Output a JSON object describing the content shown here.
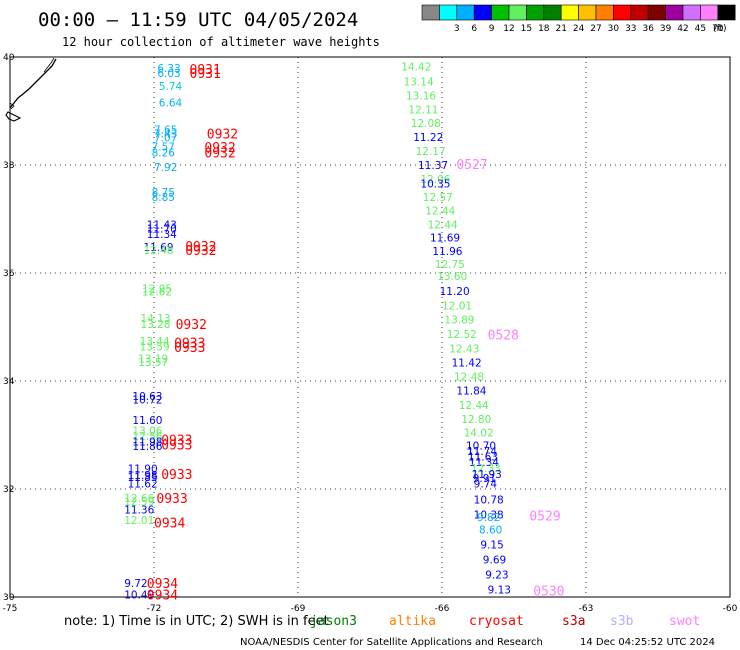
{
  "header": {
    "title": "00:00 – 11:59 UTC 04/05/2024",
    "subtitle": "12 hour collection of altimeter wave heights"
  },
  "colorbar": {
    "unit": "(ft)",
    "bins": [
      {
        "label": "",
        "color": "#888888"
      },
      {
        "label": "3",
        "color": "#00ffff"
      },
      {
        "label": "6",
        "color": "#00b0ff"
      },
      {
        "label": "9",
        "color": "#0000ff"
      },
      {
        "label": "12",
        "color": "#00c000"
      },
      {
        "label": "15",
        "color": "#60f060"
      },
      {
        "label": "18",
        "color": "#00a000"
      },
      {
        "label": "21",
        "color": "#008000"
      },
      {
        "label": "24",
        "color": "#ffff00"
      },
      {
        "label": "27",
        "color": "#ffc000"
      },
      {
        "label": "30",
        "color": "#ff8000"
      },
      {
        "label": "33",
        "color": "#ff0000"
      },
      {
        "label": "36",
        "color": "#c00000"
      },
      {
        "label": "39",
        "color": "#800000"
      },
      {
        "label": "42",
        "color": "#a000a0"
      },
      {
        "label": "45",
        "color": "#d070ff"
      },
      {
        "label": "70",
        "color": "#ff80ff"
      },
      {
        "label": "",
        "color": "#000000"
      }
    ]
  },
  "axes": {
    "lon_labels": [
      "-75",
      "-72",
      "-69",
      "-66",
      "-63",
      "-60"
    ],
    "lat_labels": [
      "40",
      "38",
      "36",
      "34",
      "32",
      "30"
    ]
  },
  "footer": {
    "note": "note: 1) Time is in UTC; 2) SWH is in feet",
    "satellites": [
      {
        "name": "jason3",
        "color": "#008000"
      },
      {
        "name": "altika",
        "color": "#ff8000"
      },
      {
        "name": "cryosat",
        "color": "#ff0000"
      },
      {
        "name": "s3a",
        "color": "#c00000"
      },
      {
        "name": "s3b",
        "color": "#b0b0ff"
      },
      {
        "name": "swot",
        "color": "#ff80ff"
      }
    ],
    "credit": "NOAA/NESDIS Center for Satellite Applications and Research",
    "timestamp": "14 Dec 04:25:52 UTC 2024"
  },
  "colors": {
    "c_lightgreen": "#60f060",
    "c_blue": "#0000ff",
    "c_skyblue": "#00b0ff",
    "c_cyan": "#00d0d0",
    "c_red": "#ff0000",
    "c_pink": "#ff80ff"
  },
  "observations": [
    {
      "lon": -71.93,
      "lat": 39.8,
      "text": "6.33",
      "color": "#00b0ff"
    },
    {
      "lon": -71.93,
      "lat": 39.7,
      "text": "6.03",
      "color": "#00b0ff"
    },
    {
      "lon": -71.9,
      "lat": 39.46,
      "text": "5.74",
      "color": "#00d0d0"
    },
    {
      "lon": -71.9,
      "lat": 39.16,
      "text": "6.64",
      "color": "#00b0ff"
    },
    {
      "lon": -72.0,
      "lat": 38.66,
      "text": "7.65",
      "color": "#00b0ff"
    },
    {
      "lon": -72.0,
      "lat": 38.58,
      "text": "7.43",
      "color": "#00b0ff"
    },
    {
      "lon": -72.0,
      "lat": 38.51,
      "text": "7.07",
      "color": "#00b0ff"
    },
    {
      "lon": -72.05,
      "lat": 38.34,
      "text": "7.57",
      "color": "#00b0ff"
    },
    {
      "lon": -72.05,
      "lat": 38.23,
      "text": "8.26",
      "color": "#00b0ff"
    },
    {
      "lon": -72.0,
      "lat": 37.96,
      "text": "7.92",
      "color": "#00b0ff"
    },
    {
      "lon": -72.05,
      "lat": 37.5,
      "text": "8.75",
      "color": "#00b0ff"
    },
    {
      "lon": -72.05,
      "lat": 37.41,
      "text": "8.85",
      "color": "#00b0ff"
    },
    {
      "lon": -72.15,
      "lat": 36.9,
      "text": "11.43",
      "color": "#0000ff"
    },
    {
      "lon": -72.15,
      "lat": 36.82,
      "text": "11.70",
      "color": "#0000ff"
    },
    {
      "lon": -72.15,
      "lat": 36.72,
      "text": "11.34",
      "color": "#0000ff"
    },
    {
      "lon": -72.22,
      "lat": 36.48,
      "text": "11.69",
      "color": "#0000ff"
    },
    {
      "lon": -72.22,
      "lat": 36.43,
      "text": "12.48",
      "color": "#60f060"
    },
    {
      "lon": -72.25,
      "lat": 35.71,
      "text": "12.95",
      "color": "#60f060"
    },
    {
      "lon": -72.25,
      "lat": 35.66,
      "text": "12.62",
      "color": "#60f060"
    },
    {
      "lon": -72.28,
      "lat": 35.17,
      "text": "14.13",
      "color": "#60f060"
    },
    {
      "lon": -72.28,
      "lat": 35.06,
      "text": "13.28",
      "color": "#60f060"
    },
    {
      "lon": -72.3,
      "lat": 34.74,
      "text": "13.44",
      "color": "#60f060"
    },
    {
      "lon": -72.3,
      "lat": 34.64,
      "text": "13.59",
      "color": "#60f060"
    },
    {
      "lon": -72.33,
      "lat": 34.42,
      "text": "13.19",
      "color": "#60f060"
    },
    {
      "lon": -72.33,
      "lat": 34.35,
      "text": "13.57",
      "color": "#60f060"
    },
    {
      "lon": -72.45,
      "lat": 33.72,
      "text": "10.63",
      "color": "#0000ff"
    },
    {
      "lon": -72.45,
      "lat": 33.66,
      "text": "10.72",
      "color": "#0000ff"
    },
    {
      "lon": -72.45,
      "lat": 33.28,
      "text": "11.60",
      "color": "#0000ff"
    },
    {
      "lon": -72.45,
      "lat": 33.08,
      "text": "13.06",
      "color": "#60f060"
    },
    {
      "lon": -72.45,
      "lat": 32.98,
      "text": "12.56",
      "color": "#60f060"
    },
    {
      "lon": -72.45,
      "lat": 32.88,
      "text": "11.98",
      "color": "#0000ff"
    },
    {
      "lon": -72.45,
      "lat": 32.8,
      "text": "11.86",
      "color": "#0000ff"
    },
    {
      "lon": -72.55,
      "lat": 32.38,
      "text": "11.90",
      "color": "#0000ff"
    },
    {
      "lon": -72.55,
      "lat": 32.26,
      "text": "11.98",
      "color": "#0000ff"
    },
    {
      "lon": -72.55,
      "lat": 32.22,
      "text": "11.85",
      "color": "#0000ff"
    },
    {
      "lon": -72.55,
      "lat": 32.1,
      "text": "11.62",
      "color": "#0000ff"
    },
    {
      "lon": -72.62,
      "lat": 31.83,
      "text": "12.66",
      "color": "#60f060"
    },
    {
      "lon": -72.62,
      "lat": 31.77,
      "text": "12.59",
      "color": "#60f060"
    },
    {
      "lon": -72.62,
      "lat": 31.62,
      "text": "11.36",
      "color": "#0000ff"
    },
    {
      "lon": -72.62,
      "lat": 31.43,
      "text": "12.01",
      "color": "#60f060"
    },
    {
      "lon": -72.62,
      "lat": 30.26,
      "text": "9.72",
      "color": "#0000ff"
    },
    {
      "lon": -72.62,
      "lat": 30.05,
      "text": "10.49",
      "color": "#0000ff"
    },
    {
      "lon": -66.85,
      "lat": 39.82,
      "text": "14.42",
      "color": "#60f060"
    },
    {
      "lon": -66.8,
      "lat": 39.55,
      "text": "13.14",
      "color": "#60f060"
    },
    {
      "lon": -66.75,
      "lat": 39.29,
      "text": "13.16",
      "color": "#60f060"
    },
    {
      "lon": -66.7,
      "lat": 39.03,
      "text": "12.11",
      "color": "#60f060"
    },
    {
      "lon": -66.65,
      "lat": 38.78,
      "text": "12.08",
      "color": "#60f060"
    },
    {
      "lon": -66.6,
      "lat": 38.52,
      "text": "11.22",
      "color": "#0000ff"
    },
    {
      "lon": -66.55,
      "lat": 38.26,
      "text": "12.17",
      "color": "#60f060"
    },
    {
      "lon": -66.5,
      "lat": 38.0,
      "text": "11.37",
      "color": "#0000ff"
    },
    {
      "lon": -66.45,
      "lat": 37.74,
      "text": "12.06",
      "color": "#60f060"
    },
    {
      "lon": -66.45,
      "lat": 37.66,
      "text": "10.35",
      "color": "#0000ff"
    },
    {
      "lon": -66.4,
      "lat": 37.41,
      "text": "12.57",
      "color": "#60f060"
    },
    {
      "lon": -66.35,
      "lat": 37.16,
      "text": "12.44",
      "color": "#60f060"
    },
    {
      "lon": -66.3,
      "lat": 36.9,
      "text": "12.44",
      "color": "#60f060"
    },
    {
      "lon": -66.25,
      "lat": 36.66,
      "text": "11.69",
      "color": "#0000ff"
    },
    {
      "lon": -66.2,
      "lat": 36.41,
      "text": "11.96",
      "color": "#0000ff"
    },
    {
      "lon": -66.15,
      "lat": 36.17,
      "text": "12.75",
      "color": "#60f060"
    },
    {
      "lon": -66.1,
      "lat": 35.94,
      "text": "13.60",
      "color": "#60f060"
    },
    {
      "lon": -66.05,
      "lat": 35.67,
      "text": "11.20",
      "color": "#0000ff"
    },
    {
      "lon": -66.0,
      "lat": 35.4,
      "text": "12.01",
      "color": "#60f060"
    },
    {
      "lon": -65.95,
      "lat": 35.14,
      "text": "13.89",
      "color": "#60f060"
    },
    {
      "lon": -65.9,
      "lat": 34.87,
      "text": "12.52",
      "color": "#60f060"
    },
    {
      "lon": -65.85,
      "lat": 34.6,
      "text": "12.43",
      "color": "#60f060"
    },
    {
      "lon": -65.8,
      "lat": 34.34,
      "text": "11.42",
      "color": "#0000ff"
    },
    {
      "lon": -65.75,
      "lat": 34.08,
      "text": "12.48",
      "color": "#60f060"
    },
    {
      "lon": -65.7,
      "lat": 33.82,
      "text": "11.84",
      "color": "#0000ff"
    },
    {
      "lon": -65.65,
      "lat": 33.56,
      "text": "12.44",
      "color": "#60f060"
    },
    {
      "lon": -65.6,
      "lat": 33.3,
      "text": "12.80",
      "color": "#60f060"
    },
    {
      "lon": -65.55,
      "lat": 33.05,
      "text": "14.02",
      "color": "#60f060"
    },
    {
      "lon": -65.5,
      "lat": 32.81,
      "text": "10.70",
      "color": "#0000ff"
    },
    {
      "lon": -65.48,
      "lat": 32.7,
      "text": "11.74",
      "color": "#0000ff"
    },
    {
      "lon": -65.46,
      "lat": 32.6,
      "text": "11.63",
      "color": "#0000ff"
    },
    {
      "lon": -65.44,
      "lat": 32.5,
      "text": "11.34",
      "color": "#0000ff"
    },
    {
      "lon": -65.4,
      "lat": 32.39,
      "text": "12.33",
      "color": "#60f060"
    },
    {
      "lon": -65.38,
      "lat": 32.28,
      "text": "11.93",
      "color": "#0000ff"
    },
    {
      "lon": -65.36,
      "lat": 32.2,
      "text": "9.91",
      "color": "#0000ff"
    },
    {
      "lon": -65.34,
      "lat": 32.1,
      "text": "9.74",
      "color": "#0000ff"
    },
    {
      "lon": -65.34,
      "lat": 31.81,
      "text": "10.78",
      "color": "#0000ff"
    },
    {
      "lon": -65.34,
      "lat": 31.53,
      "text": "10.38",
      "color": "#0000ff"
    },
    {
      "lon": -65.27,
      "lat": 31.48,
      "text": "9.82",
      "color": "#00b0ff"
    },
    {
      "lon": -65.23,
      "lat": 31.25,
      "text": "8.60",
      "color": "#00b0ff"
    },
    {
      "lon": -65.2,
      "lat": 30.97,
      "text": "9.15",
      "color": "#0000ff"
    },
    {
      "lon": -65.15,
      "lat": 30.69,
      "text": "9.69",
      "color": "#0000ff"
    },
    {
      "lon": -65.1,
      "lat": 30.42,
      "text": "9.23",
      "color": "#0000ff"
    },
    {
      "lon": -65.05,
      "lat": 30.14,
      "text": "9.13",
      "color": "#0000ff"
    }
  ],
  "pass_labels": [
    {
      "lon": -71.26,
      "lat": 39.78,
      "text": "0931",
      "color": "#ff0000"
    },
    {
      "lon": -71.26,
      "lat": 39.7,
      "text": "0931",
      "color": "#ff0000"
    },
    {
      "lon": -70.9,
      "lat": 38.58,
      "text": "0932",
      "color": "#ff0000"
    },
    {
      "lon": -70.95,
      "lat": 38.33,
      "text": "0932",
      "color": "#ff0000"
    },
    {
      "lon": -70.95,
      "lat": 38.23,
      "text": "0932",
      "color": "#ff0000"
    },
    {
      "lon": -71.35,
      "lat": 36.5,
      "text": "0932",
      "color": "#ff0000"
    },
    {
      "lon": -71.35,
      "lat": 36.43,
      "text": "0932",
      "color": "#ff0000"
    },
    {
      "lon": -71.55,
      "lat": 35.06,
      "text": "0932",
      "color": "#ff0000"
    },
    {
      "lon": -71.58,
      "lat": 34.71,
      "text": "0933",
      "color": "#ff0000"
    },
    {
      "lon": -71.58,
      "lat": 34.63,
      "text": "0933",
      "color": "#ff0000"
    },
    {
      "lon": -71.85,
      "lat": 32.92,
      "text": "0933",
      "color": "#ff0000"
    },
    {
      "lon": -71.85,
      "lat": 32.82,
      "text": "0933",
      "color": "#ff0000"
    },
    {
      "lon": -71.85,
      "lat": 32.28,
      "text": "0933",
      "color": "#ff0000"
    },
    {
      "lon": -71.95,
      "lat": 31.83,
      "text": "0933",
      "color": "#ff0000"
    },
    {
      "lon": -72.0,
      "lat": 31.38,
      "text": "0934",
      "color": "#ff0000"
    },
    {
      "lon": -72.15,
      "lat": 30.26,
      "text": "0934",
      "color": "#ff0000"
    },
    {
      "lon": -72.15,
      "lat": 30.05,
      "text": "0934",
      "color": "#ff0000"
    },
    {
      "lon": -65.7,
      "lat": 38.02,
      "text": "0527",
      "color": "#ff80ff"
    },
    {
      "lon": -65.05,
      "lat": 34.86,
      "text": "0528",
      "color": "#ff80ff"
    },
    {
      "lon": -64.18,
      "lat": 31.51,
      "text": "0529",
      "color": "#ff80ff"
    },
    {
      "lon": -64.1,
      "lat": 30.12,
      "text": "0530",
      "color": "#ff80ff"
    }
  ]
}
